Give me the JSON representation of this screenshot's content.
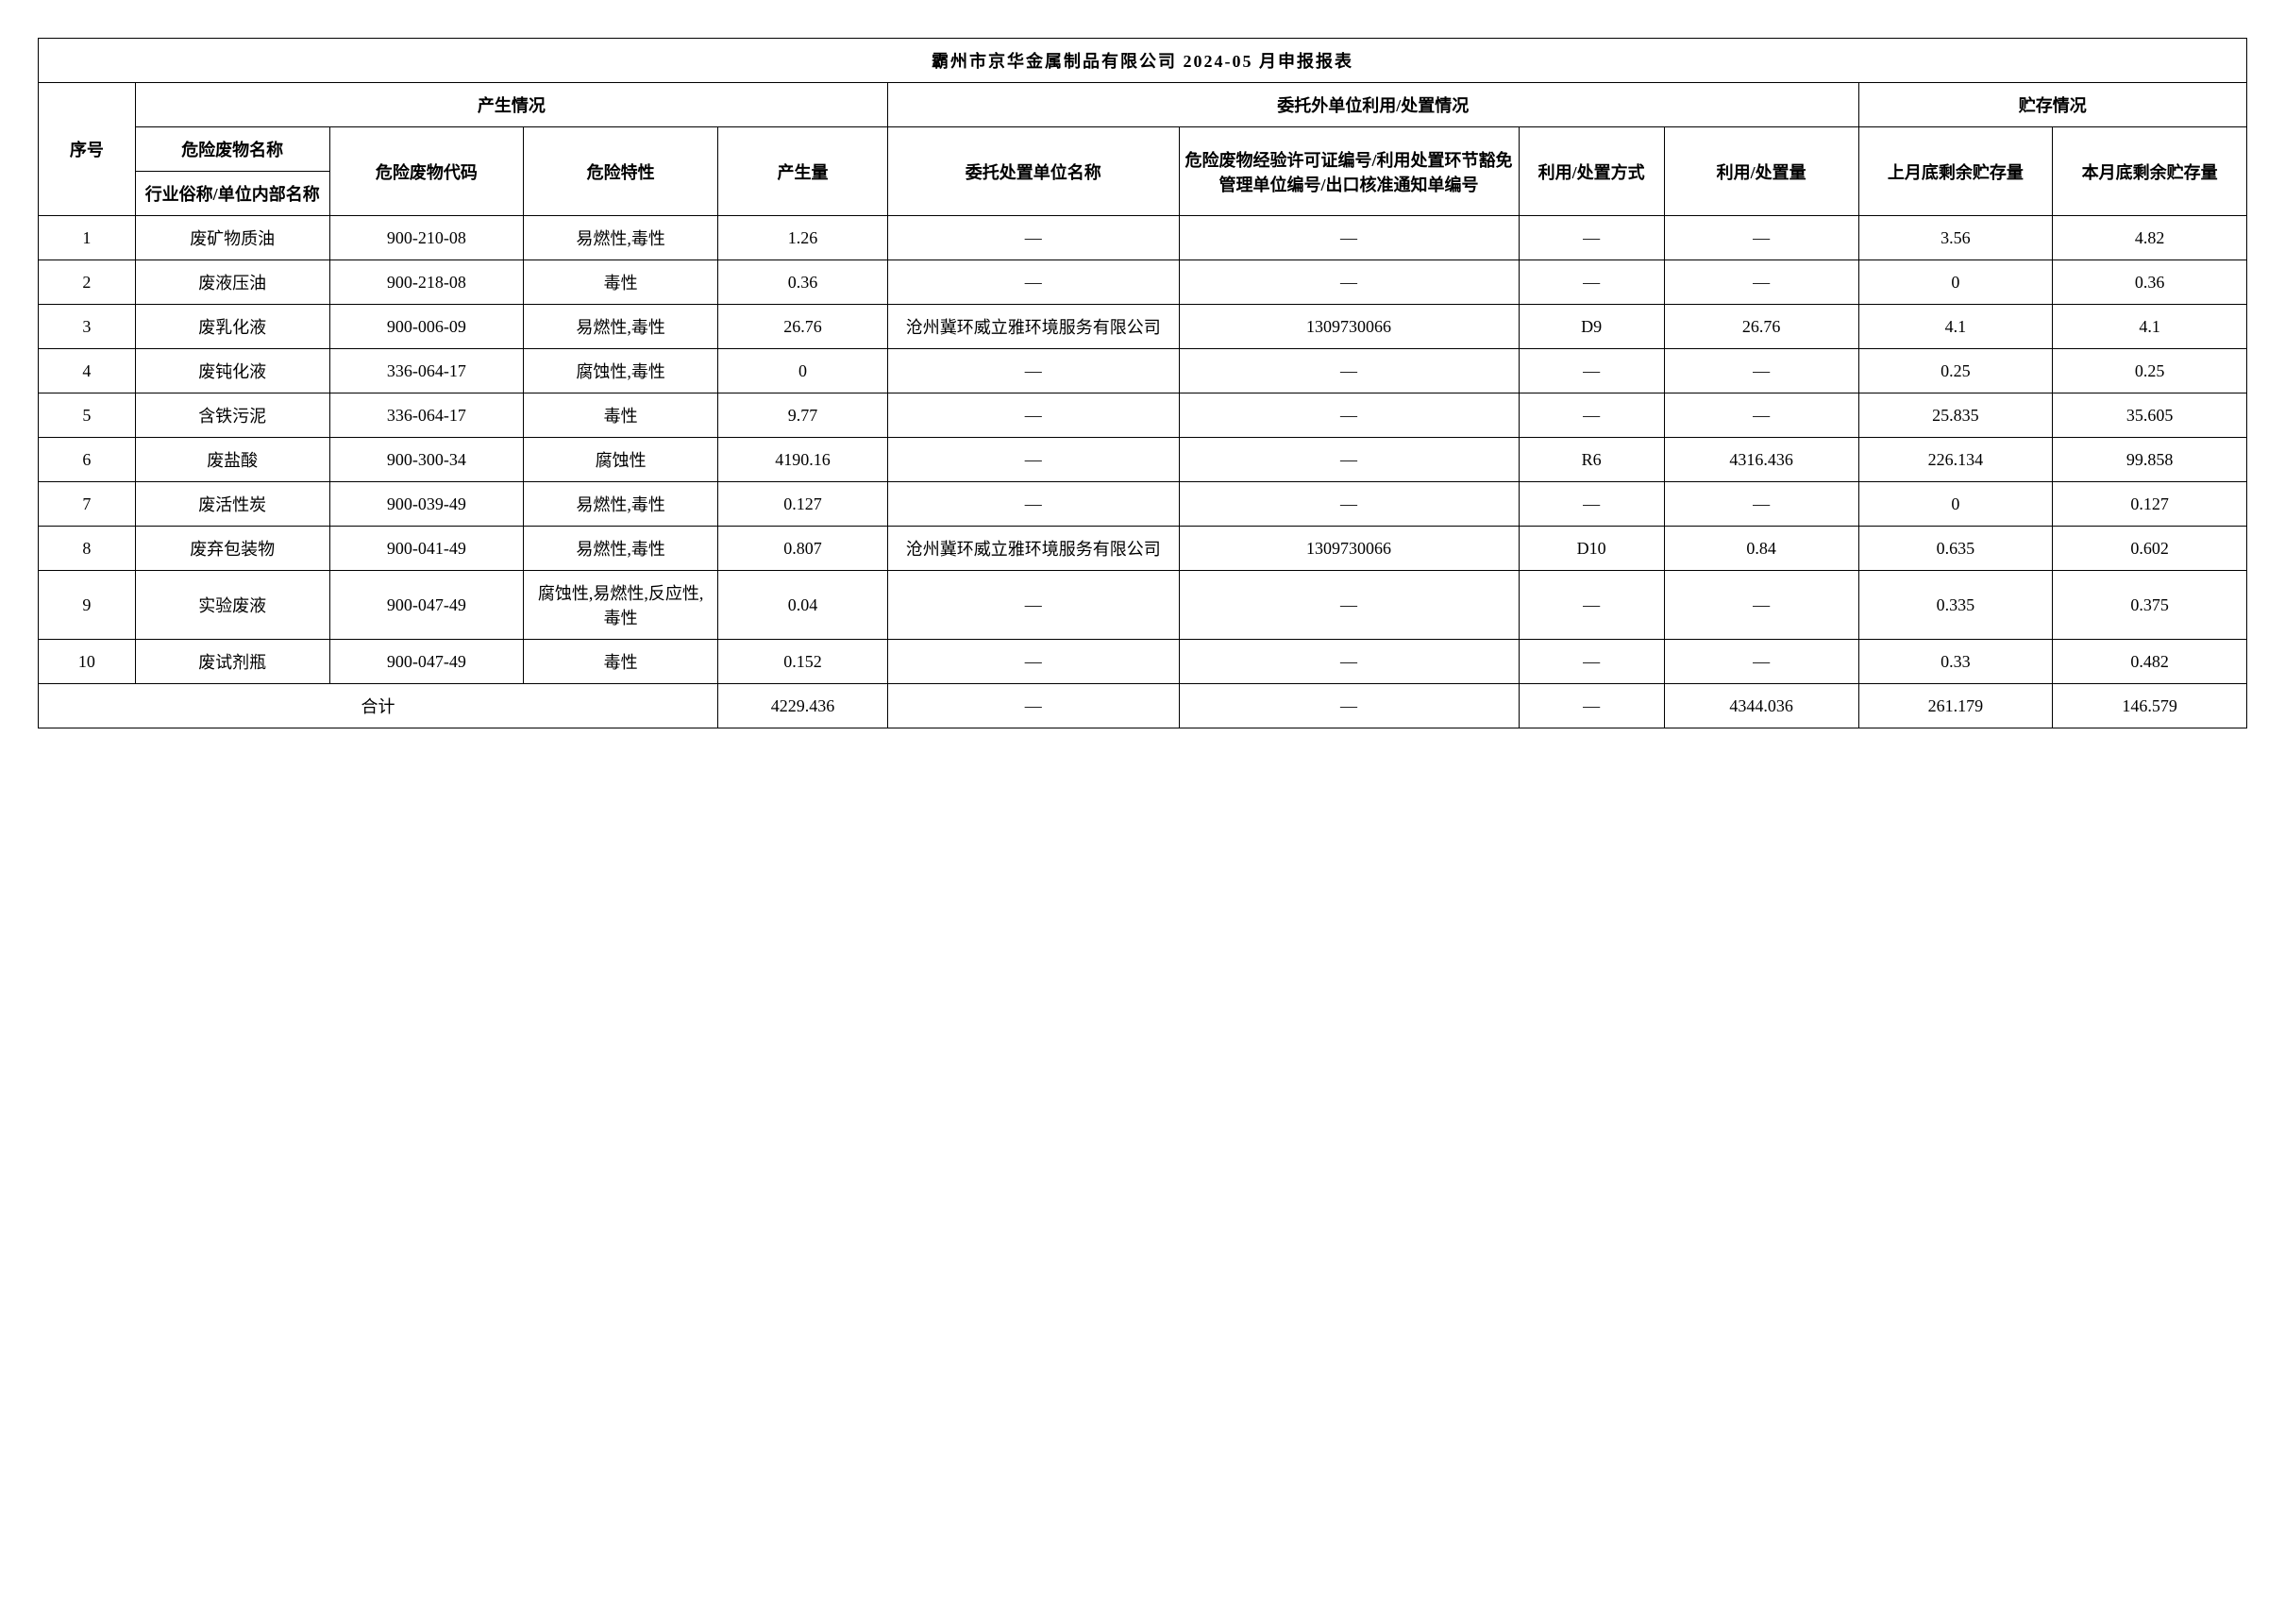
{
  "title": "霸州市京华金属制品有限公司 2024-05 月申报报表",
  "headers": {
    "seq": "序号",
    "group_produce": "产生情况",
    "group_dispose": "委托外单位利用/处置情况",
    "group_store": "贮存情况",
    "waste_name": "危险废物名称",
    "waste_alias": "行业俗称/单位内部名称",
    "waste_code": "危险废物代码",
    "hazard": "危险特性",
    "qty": "产生量",
    "entrust_unit": "委托处置单位名称",
    "license": "危险废物经验许可证编号/利用处置环节豁免管理单位编号/出口核准通知单编号",
    "method": "利用/处置方式",
    "disp_qty": "利用/处置量",
    "prev_store": "上月底剩余贮存量",
    "curr_store": "本月底剩余贮存量",
    "total": "合计"
  },
  "rows": [
    {
      "seq": "1",
      "name": "废矿物质油",
      "code": "900-210-08",
      "hazard": "易燃性,毒性",
      "qty": "1.26",
      "entrust": "—",
      "license": "—",
      "method": "—",
      "disp_qty": "—",
      "prev": "3.56",
      "curr": "4.82"
    },
    {
      "seq": "2",
      "name": "废液压油",
      "code": "900-218-08",
      "hazard": "毒性",
      "qty": "0.36",
      "entrust": "—",
      "license": "—",
      "method": "—",
      "disp_qty": "—",
      "prev": "0",
      "curr": "0.36"
    },
    {
      "seq": "3",
      "name": "废乳化液",
      "code": "900-006-09",
      "hazard": "易燃性,毒性",
      "qty": "26.76",
      "entrust": "沧州冀环威立雅环境服务有限公司",
      "license": "1309730066",
      "method": "D9",
      "disp_qty": "26.76",
      "prev": "4.1",
      "curr": "4.1"
    },
    {
      "seq": "4",
      "name": "废钝化液",
      "code": "336-064-17",
      "hazard": "腐蚀性,毒性",
      "qty": "0",
      "entrust": "—",
      "license": "—",
      "method": "—",
      "disp_qty": "—",
      "prev": "0.25",
      "curr": "0.25"
    },
    {
      "seq": "5",
      "name": "含铁污泥",
      "code": "336-064-17",
      "hazard": "毒性",
      "qty": "9.77",
      "entrust": "—",
      "license": "—",
      "method": "—",
      "disp_qty": "—",
      "prev": "25.835",
      "curr": "35.605"
    },
    {
      "seq": "6",
      "name": "废盐酸",
      "code": "900-300-34",
      "hazard": "腐蚀性",
      "qty": "4190.16",
      "entrust": "—",
      "license": "—",
      "method": "R6",
      "disp_qty": "4316.436",
      "prev": "226.134",
      "curr": "99.858"
    },
    {
      "seq": "7",
      "name": "废活性炭",
      "code": "900-039-49",
      "hazard": "易燃性,毒性",
      "qty": "0.127",
      "entrust": "—",
      "license": "—",
      "method": "—",
      "disp_qty": "—",
      "prev": "0",
      "curr": "0.127"
    },
    {
      "seq": "8",
      "name": "废弃包装物",
      "code": "900-041-49",
      "hazard": "易燃性,毒性",
      "qty": "0.807",
      "entrust": "沧州冀环威立雅环境服务有限公司",
      "license": "1309730066",
      "method": "D10",
      "disp_qty": "0.84",
      "prev": "0.635",
      "curr": "0.602"
    },
    {
      "seq": "9",
      "name": "实验废液",
      "code": "900-047-49",
      "hazard": "腐蚀性,易燃性,反应性,毒性",
      "qty": "0.04",
      "entrust": "—",
      "license": "—",
      "method": "—",
      "disp_qty": "—",
      "prev": "0.335",
      "curr": "0.375"
    },
    {
      "seq": "10",
      "name": "废试剂瓶",
      "code": "900-047-49",
      "hazard": "毒性",
      "qty": "0.152",
      "entrust": "—",
      "license": "—",
      "method": "—",
      "disp_qty": "—",
      "prev": "0.33",
      "curr": "0.482"
    }
  ],
  "totals": {
    "qty": "4229.436",
    "entrust": "—",
    "license": "—",
    "method": "—",
    "disp_qty": "4344.036",
    "prev": "261.179",
    "curr": "146.579"
  }
}
